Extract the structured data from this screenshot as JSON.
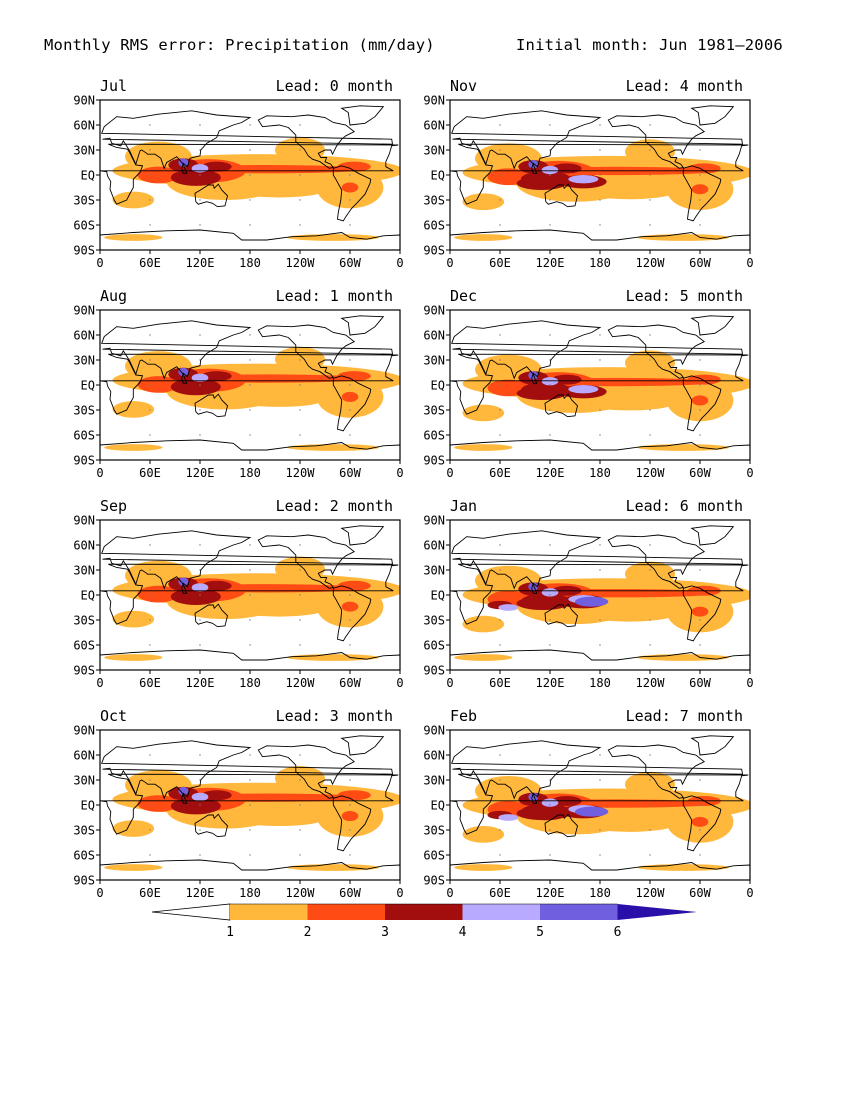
{
  "header": {
    "title_left": "Monthly RMS error: Precipitation (mm/day)",
    "title_right": "Initial month: Jun 1981–2006"
  },
  "axes": {
    "lat_labels": [
      "90N",
      "60N",
      "30N",
      "EQ",
      "30S",
      "60S",
      "90S"
    ],
    "lon_labels": [
      "0",
      "60E",
      "120E",
      "180",
      "120W",
      "60W",
      "0"
    ]
  },
  "panels": [
    {
      "month": "Jul",
      "lead": "Lead: 0 month"
    },
    {
      "month": "Nov",
      "lead": "Lead: 4 month"
    },
    {
      "month": "Aug",
      "lead": "Lead: 1 month"
    },
    {
      "month": "Dec",
      "lead": "Lead: 5 month"
    },
    {
      "month": "Sep",
      "lead": "Lead: 2 month"
    },
    {
      "month": "Jan",
      "lead": "Lead: 6 month"
    },
    {
      "month": "Oct",
      "lead": "Lead: 3 month"
    },
    {
      "month": "Feb",
      "lead": "Lead: 7 month"
    }
  ],
  "colorbar": {
    "labels": [
      "1",
      "2",
      "3",
      "4",
      "5",
      "6"
    ],
    "colors": [
      "#ffffff",
      "#ffb83c",
      "#ff4c14",
      "#a20e0e",
      "#b8aaff",
      "#7060e0",
      "#2a10a8"
    ]
  },
  "colors": {
    "land_outline": "#000000",
    "grid": "#7a7a7a"
  }
}
